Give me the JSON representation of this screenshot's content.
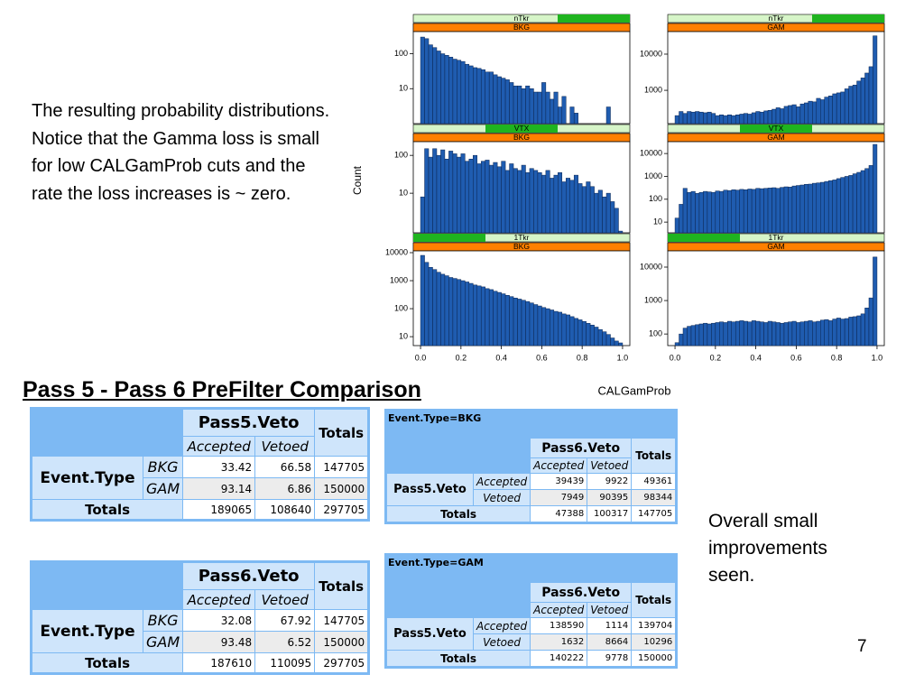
{
  "slide": {
    "paragraph": "The resulting probability distributions.   Notice that the Gamma loss is small for low CALGamProb cuts and the rate the loss increases is ~ zero.",
    "title": "Pass 5 - Pass 6 PreFilter Comparison",
    "note": "Overall small improvements seen.",
    "page_number": "7"
  },
  "lattice": {
    "ylabel": "Count",
    "xlabel": "CALGamProb"
  },
  "chart_data": [
    {
      "type": "histogram",
      "strips": [
        "nTkr",
        "BKG"
      ],
      "color": "#1f5cb0",
      "log_y": true,
      "xlim": [
        -0.036,
        1.036
      ],
      "ylim": [
        1,
        430
      ],
      "yticks": [
        10,
        100
      ],
      "bins": [
        0,
        0.02,
        0.04,
        0.06,
        0.08,
        0.1,
        0.12,
        0.14,
        0.16,
        0.18,
        0.2,
        0.22,
        0.24,
        0.26,
        0.28,
        0.3,
        0.32,
        0.34,
        0.36,
        0.38,
        0.4,
        0.42,
        0.44,
        0.46,
        0.48,
        0.5,
        0.52,
        0.54,
        0.56,
        0.58,
        0.6,
        0.62,
        0.64,
        0.66,
        0.68,
        0.7,
        0.72,
        0.74,
        0.76,
        0.78,
        0.8,
        0.82,
        0.84,
        0.86,
        0.88,
        0.9,
        0.92,
        0.94,
        0.96,
        0.98,
        1
      ],
      "values": [
        300,
        270,
        180,
        150,
        120,
        100,
        90,
        80,
        70,
        65,
        60,
        50,
        45,
        40,
        38,
        35,
        30,
        30,
        25,
        22,
        20,
        18,
        15,
        12,
        12,
        10,
        12,
        10,
        8,
        8,
        15,
        8,
        5,
        8,
        3,
        6,
        1,
        3,
        2,
        1,
        1,
        1,
        1,
        1,
        1,
        1,
        3,
        1,
        1,
        1
      ]
    },
    {
      "type": "histogram",
      "strips": [
        "nTkr",
        "GAM"
      ],
      "color": "#1f5cb0",
      "log_y": true,
      "xlim": [
        -0.036,
        1.036
      ],
      "ylim": [
        120,
        42000
      ],
      "yticks": [
        1000,
        10000
      ],
      "bins": [
        0,
        0.02,
        0.04,
        0.06,
        0.08,
        0.1,
        0.12,
        0.14,
        0.16,
        0.18,
        0.2,
        0.22,
        0.24,
        0.26,
        0.28,
        0.3,
        0.32,
        0.34,
        0.36,
        0.38,
        0.4,
        0.42,
        0.44,
        0.46,
        0.48,
        0.5,
        0.52,
        0.54,
        0.56,
        0.58,
        0.6,
        0.62,
        0.64,
        0.66,
        0.68,
        0.7,
        0.72,
        0.74,
        0.76,
        0.78,
        0.8,
        0.82,
        0.84,
        0.86,
        0.88,
        0.9,
        0.92,
        0.94,
        0.96,
        0.98,
        1
      ],
      "values": [
        200,
        260,
        230,
        260,
        250,
        260,
        250,
        240,
        250,
        230,
        200,
        210,
        200,
        210,
        200,
        210,
        220,
        230,
        220,
        240,
        260,
        250,
        270,
        280,
        300,
        330,
        310,
        360,
        380,
        400,
        350,
        420,
        450,
        500,
        480,
        600,
        550,
        650,
        700,
        800,
        850,
        900,
        1100,
        1300,
        1400,
        1800,
        2200,
        3000,
        4500,
        32000
      ]
    },
    {
      "type": "histogram",
      "strips": [
        "VTX",
        "BKG"
      ],
      "color": "#1f5cb0",
      "log_y": true,
      "xlim": [
        -0.036,
        1.036
      ],
      "ylim": [
        0.9,
        230
      ],
      "yticks": [
        10,
        100
      ],
      "bins": [
        0,
        0.02,
        0.04,
        0.06,
        0.08,
        0.1,
        0.12,
        0.14,
        0.16,
        0.18,
        0.2,
        0.22,
        0.24,
        0.26,
        0.28,
        0.3,
        0.32,
        0.34,
        0.36,
        0.38,
        0.4,
        0.42,
        0.44,
        0.46,
        0.48,
        0.5,
        0.52,
        0.54,
        0.56,
        0.58,
        0.6,
        0.62,
        0.64,
        0.66,
        0.68,
        0.7,
        0.72,
        0.74,
        0.76,
        0.78,
        0.8,
        0.82,
        0.84,
        0.86,
        0.88,
        0.9,
        0.92,
        0.94,
        0.96,
        0.98,
        1
      ],
      "values": [
        8,
        150,
        90,
        150,
        100,
        140,
        80,
        130,
        110,
        90,
        110,
        70,
        80,
        100,
        60,
        70,
        75,
        55,
        65,
        50,
        70,
        40,
        60,
        45,
        40,
        55,
        35,
        45,
        40,
        35,
        30,
        40,
        25,
        30,
        35,
        20,
        25,
        22,
        30,
        18,
        15,
        20,
        15,
        10,
        12,
        8,
        10,
        6,
        4,
        1
      ]
    },
    {
      "type": "histogram",
      "strips": [
        "VTX",
        "GAM"
      ],
      "color": "#1f5cb0",
      "log_y": true,
      "xlim": [
        -0.036,
        1.036
      ],
      "ylim": [
        3.4,
        33000
      ],
      "yticks": [
        10,
        100,
        1000,
        10000
      ],
      "bins": [
        0,
        0.02,
        0.04,
        0.06,
        0.08,
        0.1,
        0.12,
        0.14,
        0.16,
        0.18,
        0.2,
        0.22,
        0.24,
        0.26,
        0.28,
        0.3,
        0.32,
        0.34,
        0.36,
        0.38,
        0.4,
        0.42,
        0.44,
        0.46,
        0.48,
        0.5,
        0.52,
        0.54,
        0.56,
        0.58,
        0.6,
        0.62,
        0.64,
        0.66,
        0.68,
        0.7,
        0.72,
        0.74,
        0.76,
        0.78,
        0.8,
        0.82,
        0.84,
        0.86,
        0.88,
        0.9,
        0.92,
        0.94,
        0.96,
        0.98,
        1
      ],
      "values": [
        15,
        60,
        300,
        200,
        220,
        180,
        200,
        220,
        210,
        200,
        230,
        220,
        250,
        240,
        260,
        250,
        270,
        260,
        280,
        270,
        300,
        290,
        300,
        310,
        320,
        300,
        330,
        350,
        340,
        380,
        400,
        420,
        450,
        460,
        500,
        520,
        550,
        600,
        650,
        700,
        800,
        900,
        1000,
        1100,
        1300,
        1500,
        1800,
        2200,
        3000,
        25000
      ]
    },
    {
      "type": "histogram",
      "strips": [
        "1Tkr",
        "BKG"
      ],
      "color": "#1f5cb0",
      "log_y": true,
      "xlim": [
        -0.036,
        1.036
      ],
      "ylim": [
        4.8,
        11600
      ],
      "yticks": [
        10,
        100,
        1000,
        10000
      ],
      "xticks": [
        {
          "value": 0,
          "label": "0.0"
        },
        0.2,
        0.4,
        0.6,
        0.8,
        {
          "value": 1,
          "label": "1.0"
        }
      ],
      "bins": [
        0,
        0.02,
        0.04,
        0.06,
        0.08,
        0.1,
        0.12,
        0.14,
        0.16,
        0.18,
        0.2,
        0.22,
        0.24,
        0.26,
        0.28,
        0.3,
        0.32,
        0.34,
        0.36,
        0.38,
        0.4,
        0.42,
        0.44,
        0.46,
        0.48,
        0.5,
        0.52,
        0.54,
        0.56,
        0.58,
        0.6,
        0.62,
        0.64,
        0.66,
        0.68,
        0.7,
        0.72,
        0.74,
        0.76,
        0.78,
        0.8,
        0.82,
        0.84,
        0.86,
        0.88,
        0.9,
        0.92,
        0.94,
        0.96,
        0.98,
        1
      ],
      "values": [
        8000,
        4500,
        3000,
        2500,
        2000,
        1700,
        1500,
        1300,
        1200,
        1100,
        1000,
        900,
        800,
        700,
        650,
        600,
        520,
        480,
        420,
        380,
        340,
        300,
        270,
        240,
        220,
        200,
        180,
        160,
        140,
        125,
        110,
        100,
        90,
        80,
        75,
        65,
        60,
        52,
        45,
        40,
        35,
        30,
        26,
        22,
        18,
        15,
        12,
        9,
        7,
        6
      ]
    },
    {
      "type": "histogram",
      "strips": [
        "1Tkr",
        "GAM"
      ],
      "color": "#1f5cb0",
      "log_y": true,
      "xlim": [
        -0.036,
        1.036
      ],
      "ylim": [
        45,
        30600
      ],
      "yticks": [
        100,
        1000,
        10000
      ],
      "xticks": [
        {
          "value": 0,
          "label": "0.0"
        },
        0.2,
        0.4,
        0.6,
        0.8,
        {
          "value": 1,
          "label": "1.0"
        }
      ],
      "bins": [
        0,
        0.02,
        0.04,
        0.06,
        0.08,
        0.1,
        0.12,
        0.14,
        0.16,
        0.18,
        0.2,
        0.22,
        0.24,
        0.26,
        0.28,
        0.3,
        0.32,
        0.34,
        0.36,
        0.38,
        0.4,
        0.42,
        0.44,
        0.46,
        0.48,
        0.5,
        0.52,
        0.54,
        0.56,
        0.58,
        0.6,
        0.62,
        0.64,
        0.66,
        0.68,
        0.7,
        0.72,
        0.74,
        0.76,
        0.78,
        0.8,
        0.82,
        0.84,
        0.86,
        0.88,
        0.9,
        0.92,
        0.94,
        0.96,
        0.98,
        1
      ],
      "values": [
        55,
        100,
        150,
        170,
        180,
        190,
        200,
        210,
        200,
        210,
        220,
        230,
        220,
        240,
        230,
        240,
        250,
        240,
        230,
        250,
        240,
        230,
        220,
        240,
        230,
        220,
        210,
        220,
        230,
        240,
        220,
        230,
        240,
        250,
        230,
        240,
        260,
        270,
        250,
        280,
        300,
        280,
        290,
        320,
        330,
        350,
        400,
        600,
        1200,
        20000
      ]
    }
  ],
  "tables": [
    {
      "col_header": "Pass5.Veto",
      "col_levels": [
        "Accepted",
        "Vetoed"
      ],
      "totals_label": "Totals",
      "row_header": "Event.Type",
      "row_levels": [
        "BKG",
        "GAM"
      ],
      "cells": [
        [
          33.42,
          66.58,
          147705
        ],
        [
          93.14,
          6.86,
          150000
        ]
      ],
      "totals": [
        189065,
        108640,
        297705
      ]
    },
    {
      "col_header": "Pass6.Veto",
      "col_levels": [
        "Accepted",
        "Vetoed"
      ],
      "totals_label": "Totals",
      "row_header": "Event.Type",
      "row_levels": [
        "BKG",
        "GAM"
      ],
      "cells": [
        [
          32.08,
          67.92,
          147705
        ],
        [
          93.48,
          6.52,
          150000
        ]
      ],
      "totals": [
        187610,
        110095,
        297705
      ]
    },
    {
      "caption": "Event.Type=BKG",
      "col_header": "Pass6.Veto",
      "col_levels": [
        "Accepted",
        "Vetoed"
      ],
      "totals_label": "Totals",
      "row_header": "Pass5.Veto",
      "row_levels": [
        "Accepted",
        "Vetoed"
      ],
      "cells": [
        [
          39439,
          9922,
          49361
        ],
        [
          7949,
          90395,
          98344
        ]
      ],
      "totals": [
        47388,
        100317,
        147705
      ]
    },
    {
      "caption": "Event.Type=GAM",
      "col_header": "Pass6.Veto",
      "col_levels": [
        "Accepted",
        "Vetoed"
      ],
      "totals_label": "Totals",
      "row_header": "Pass5.Veto",
      "row_levels": [
        "Accepted",
        "Vetoed"
      ],
      "cells": [
        [
          138590,
          1114,
          139704
        ],
        [
          1632,
          8664,
          10296
        ]
      ],
      "totals": [
        140222,
        9778,
        150000
      ]
    }
  ]
}
